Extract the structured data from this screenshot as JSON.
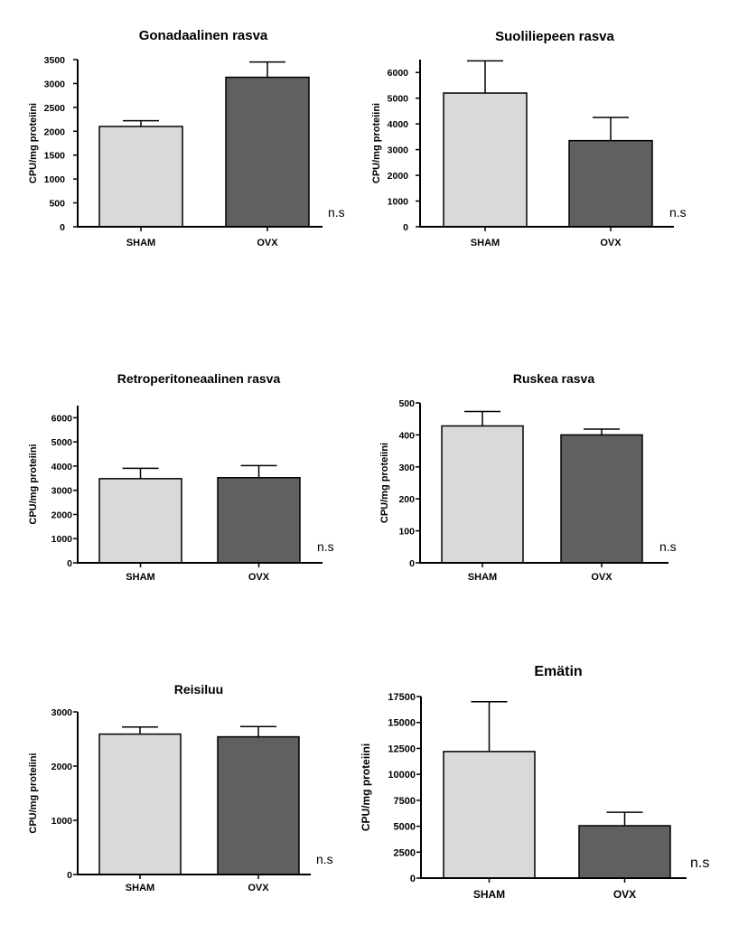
{
  "colors": {
    "sham": "#d9d9d9",
    "ovx": "#606060",
    "axis": "#000000"
  },
  "chart_data": [
    {
      "type": "bar",
      "title": "Gonadaalinen rasva",
      "ylabel": "CPU/mg proteiini",
      "categories": [
        "SHAM",
        "OVX"
      ],
      "values": [
        2100,
        3130
      ],
      "errors": [
        120,
        320
      ],
      "ylim": [
        0,
        3500
      ],
      "yticks": [
        0,
        500,
        1000,
        1500,
        2000,
        2500,
        3000,
        3500
      ],
      "annotation": "n.s"
    },
    {
      "type": "bar",
      "title": "Suoliliepeen rasva",
      "ylabel": "CPU/mg proteiini",
      "categories": [
        "SHAM",
        "OVX"
      ],
      "values": [
        5200,
        3350
      ],
      "errors": [
        1250,
        900
      ],
      "ylim": [
        0,
        6500
      ],
      "yticks": [
        0,
        1000,
        2000,
        3000,
        4000,
        5000,
        6000
      ],
      "annotation": "n.s"
    },
    {
      "type": "bar",
      "title": "Retroperitoneaalinen rasva",
      "ylabel": "CPU/mg proteiini",
      "categories": [
        "SHAM",
        "OVX"
      ],
      "values": [
        3480,
        3520
      ],
      "errors": [
        430,
        500
      ],
      "ylim": [
        0,
        6500
      ],
      "yticks": [
        0,
        1000,
        2000,
        3000,
        4000,
        5000,
        6000
      ],
      "annotation": "n.s"
    },
    {
      "type": "bar",
      "title": "Ruskea rasva",
      "ylabel": "CPU/mg proteiini",
      "categories": [
        "SHAM",
        "OVX"
      ],
      "values": [
        428,
        400
      ],
      "errors": [
        45,
        18
      ],
      "ylim": [
        0,
        500
      ],
      "yticks": [
        0,
        100,
        200,
        300,
        400,
        500
      ],
      "annotation": "n.s"
    },
    {
      "type": "bar",
      "title": "Reisiluu",
      "ylabel": "CPU/mg proteiini",
      "categories": [
        "SHAM",
        "OVX"
      ],
      "values": [
        2590,
        2540
      ],
      "errors": [
        130,
        190
      ],
      "ylim": [
        0,
        3000
      ],
      "yticks": [
        0,
        1000,
        2000,
        3000
      ],
      "annotation": "n.s"
    },
    {
      "type": "bar",
      "title": "Emätin",
      "ylabel": "CPU/mg proteiini",
      "categories": [
        "SHAM",
        "OVX"
      ],
      "values": [
        12200,
        5050
      ],
      "errors": [
        4800,
        1300
      ],
      "ylim": [
        0,
        17500
      ],
      "yticks": [
        0,
        2500,
        5000,
        7500,
        10000,
        12500,
        15000,
        17500
      ],
      "annotation": "n.s"
    }
  ]
}
